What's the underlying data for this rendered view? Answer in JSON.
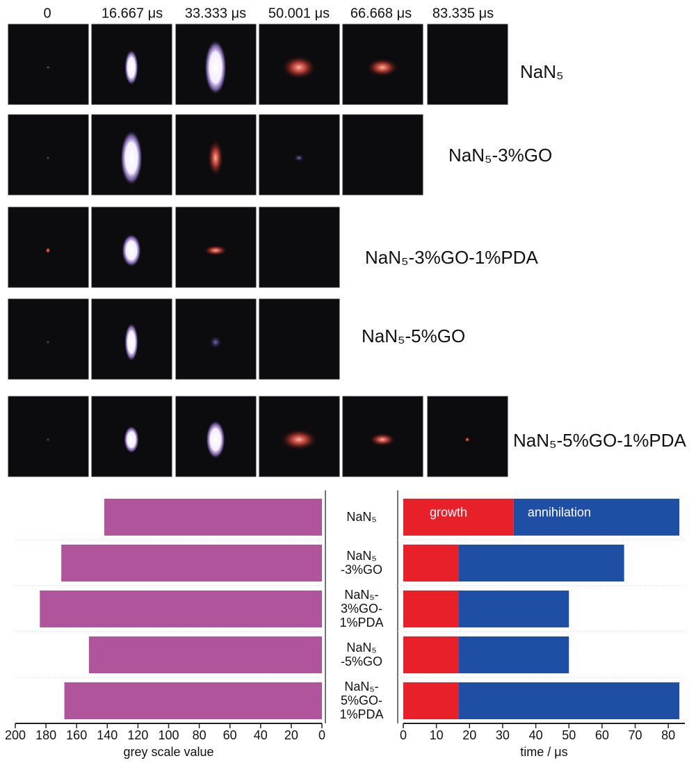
{
  "frames": {
    "times": [
      "0",
      "16.667 μs",
      "33.333 μs",
      "50.001 μs",
      "66.668 μs",
      "83.335 μs"
    ],
    "samples": [
      "NaN₅",
      "NaN₅-3%GO",
      "NaN₅-3%GO-1%PDA",
      "NaN₅-5%GO",
      "NaN₅-5%GO-1%PDA"
    ]
  },
  "chart_data": [
    {
      "type": "hbar",
      "categories": [
        "NaN₅",
        "NaN₅\n-3%GO",
        "NaN₅-\n3%GO-\n1%PDA",
        "NaN₅\n-5%GO",
        "NaN₅-\n5%GO-\n1%PDA"
      ],
      "values": [
        142,
        170,
        184,
        152,
        168
      ],
      "color": "#b0559c",
      "xlabel": "grey scale value",
      "xlim": [
        200,
        0
      ],
      "xticks": [
        200,
        180,
        160,
        140,
        120,
        100,
        80,
        60,
        40,
        20,
        0
      ],
      "grid": true
    },
    {
      "type": "stacked_hbar",
      "series": [
        {
          "name": "growth",
          "color": "#e8202a",
          "values": [
            33.333,
            16.667,
            16.667,
            16.667,
            16.667
          ]
        },
        {
          "name": "annihilation",
          "color": "#1f4fa5",
          "values": [
            50.002,
            50.001,
            33.334,
            33.334,
            66.668
          ]
        }
      ],
      "xlabel": "time / μs",
      "xlim": [
        0,
        85
      ],
      "xticks": [
        0,
        10,
        20,
        30,
        40,
        50,
        60,
        70,
        80
      ],
      "grid": true
    }
  ]
}
